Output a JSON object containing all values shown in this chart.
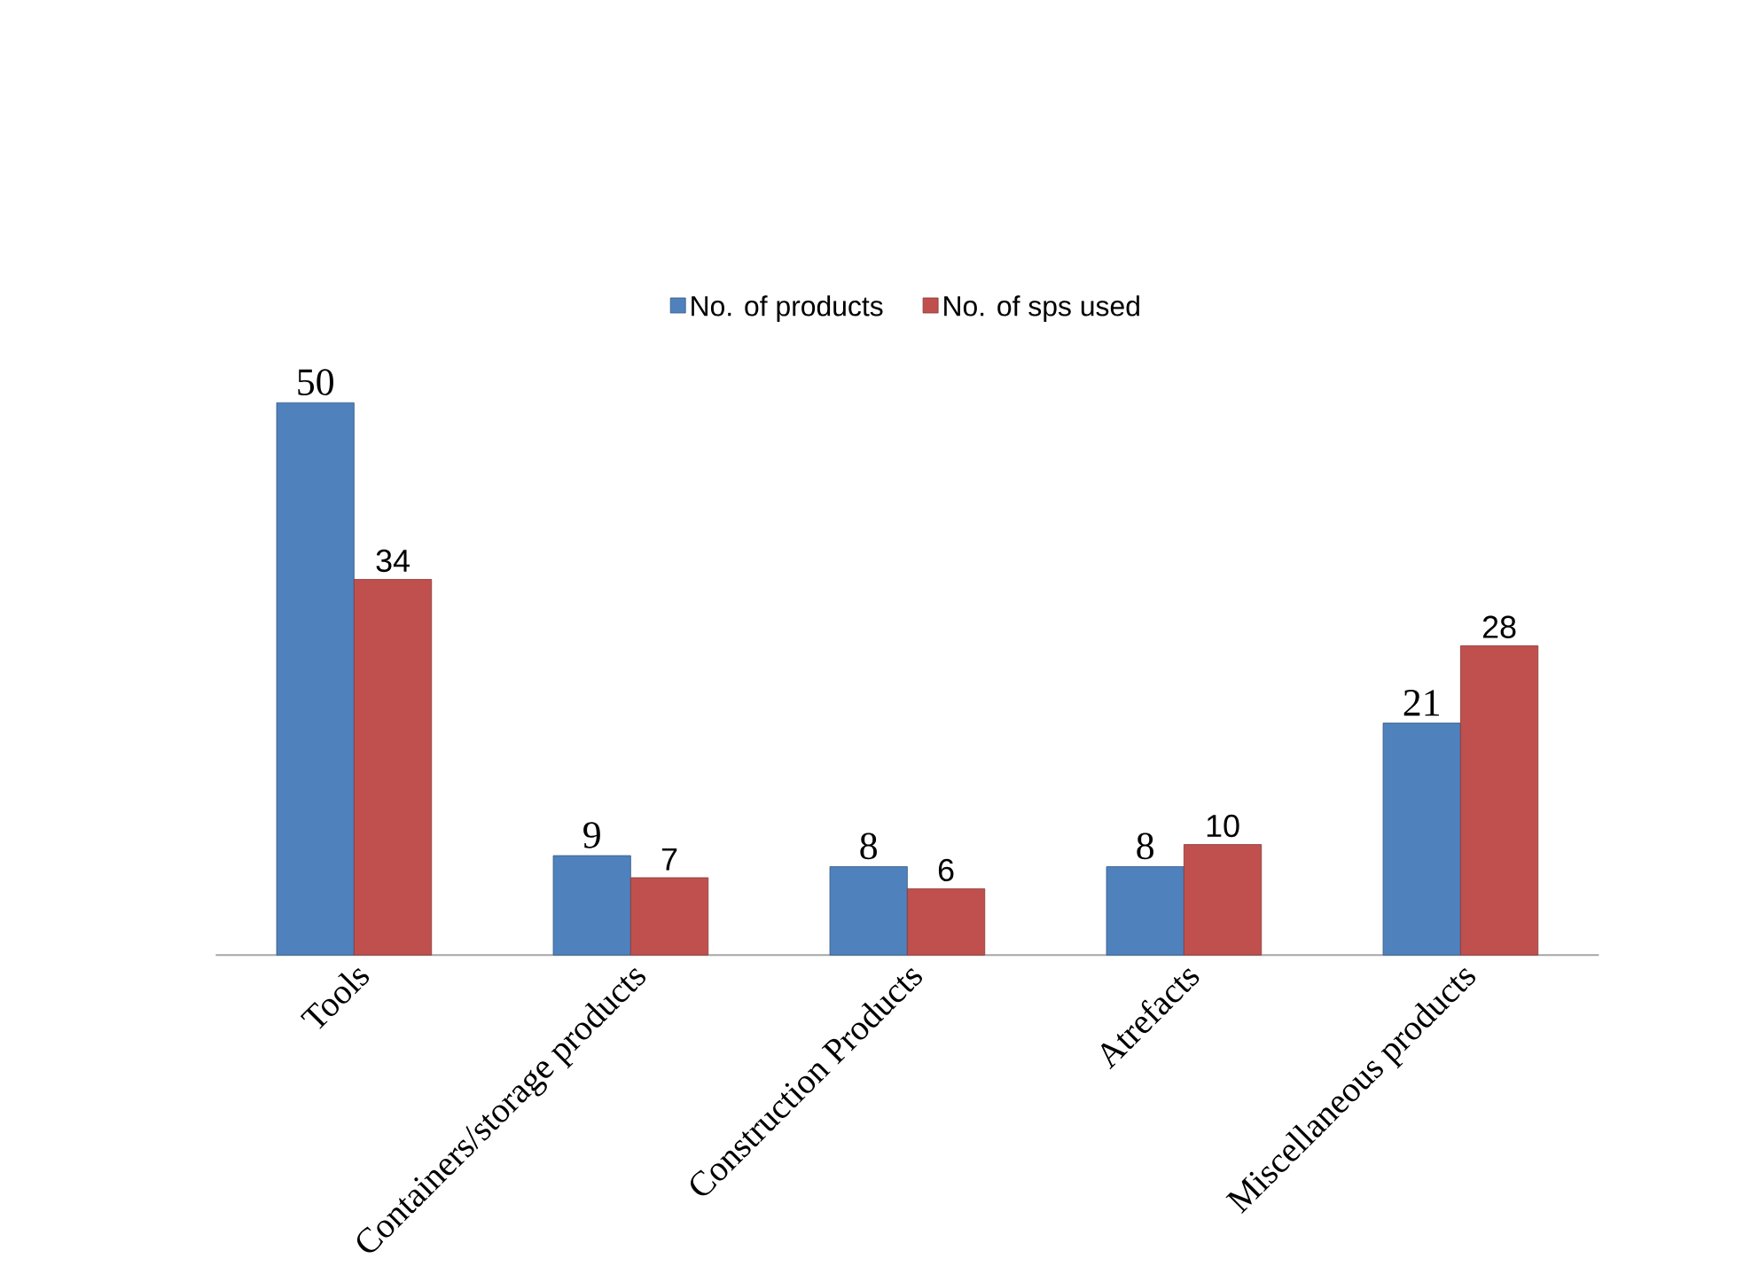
{
  "chart_data": {
    "type": "bar",
    "categories": [
      "Tools",
      "Containers/storage products",
      "Construction Products",
      "Atrefacts",
      "Miscellaneous products"
    ],
    "series": [
      {
        "name": "No. of products",
        "color": "#4f81bd",
        "values": [
          50,
          9,
          8,
          8,
          21
        ]
      },
      {
        "name": "No. of sps used",
        "color": "#c0504d",
        "values": [
          34,
          7,
          6,
          10,
          28
        ]
      }
    ],
    "data_labels": true,
    "legend": "top",
    "tick_labels": "x"
  }
}
